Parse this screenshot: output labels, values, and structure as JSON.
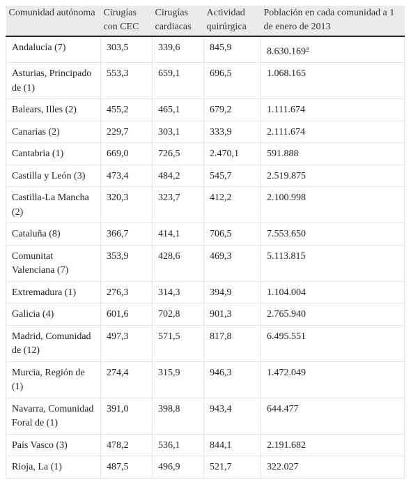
{
  "table": {
    "header": [
      "Comunidad autónoma",
      "Cirugías con CEC",
      "Cirugías cardiacas",
      "Actividad quirúrgica",
      "Población en cada comunidad a 1 de enero de 2013"
    ],
    "rows": [
      [
        "Andalucía (7)",
        "303,5",
        "339,6",
        "845,9",
        {
          "text": "8.630.169",
          "note": "a"
        }
      ],
      [
        "Asturias, Principado de (1)",
        "553,3",
        "659,1",
        "696,5",
        "1.068.165"
      ],
      [
        "Balears, Illes (2)",
        "455,2",
        "465,1",
        "679,2",
        "1.111.674"
      ],
      [
        "Canarias (2)",
        "229,7",
        "303,1",
        "333,9",
        "2.111.674"
      ],
      [
        "Cantabria (1)",
        "669,0",
        "726,5",
        "2.470,1",
        "591.888"
      ],
      [
        "Castilla y León (3)",
        "473,4",
        "484,2",
        "545,7",
        "2.519.875"
      ],
      [
        "Castilla-La Mancha (2)",
        "320,3",
        "323,7",
        "412,2",
        "2.100.998"
      ],
      [
        "Cataluña (8)",
        "366,7",
        "414,1",
        "706,5",
        "7.553.650"
      ],
      [
        "Comunitat Valenciana (7)",
        "353,9",
        "428,6",
        "469,3",
        "5.113.815"
      ],
      [
        "Extremadura (1)",
        "276,3",
        "314,3",
        "394,9",
        "1.104.004"
      ],
      [
        "Galicia (4)",
        "601,6",
        "702,8",
        "901,3",
        "2.765.940"
      ],
      [
        "Madrid, Comunidad de (12)",
        "497,3",
        "571,5",
        "817,8",
        "6.495.551"
      ],
      [
        "Murcia, Región de (1)",
        "274,4",
        "315,9",
        "946,3",
        "1.472.049"
      ],
      [
        "Navarra, Comunidad Foral de (1)",
        "391,0",
        "398,8",
        "943,4",
        "644.477"
      ],
      [
        "País Vasco (3)",
        "478,2",
        "536,1",
        "844,1",
        "2.191.682"
      ],
      [
        "Rioja, La (1)",
        "487,5",
        "496,9",
        "521,7",
        "322.027"
      ]
    ]
  }
}
